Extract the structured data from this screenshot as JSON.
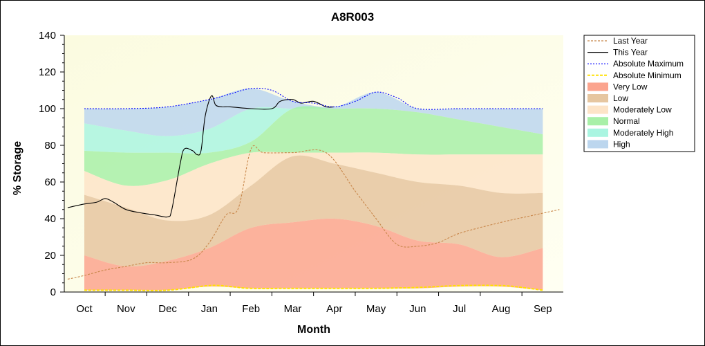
{
  "chart_data": {
    "type": "area",
    "title": "A8R003",
    "xlabel": "Month",
    "ylabel": "% Storage",
    "ylim": [
      0,
      140
    ],
    "yticks": [
      0,
      20,
      40,
      60,
      80,
      100,
      120,
      140
    ],
    "categories": [
      "Oct",
      "Nov",
      "Dec",
      "Jan",
      "Feb",
      "Mar",
      "Apr",
      "May",
      "Jun",
      "Jul",
      "Aug",
      "Sep"
    ],
    "legend_position": "right",
    "bands": [
      {
        "name": "High",
        "color": "#bcd6ee",
        "x": [
          0,
          1,
          2,
          3,
          4,
          5,
          6,
          7,
          8,
          9,
          10,
          11
        ],
        "upper": [
          100,
          100,
          101,
          105,
          111,
          104,
          101,
          109,
          100,
          100,
          100,
          100
        ],
        "lower": [
          92,
          88,
          85,
          89,
          100,
          100,
          100,
          100,
          98,
          94,
          90,
          86
        ]
      },
      {
        "name": "Moderately High",
        "color": "#aaf5e1",
        "x": [
          0,
          1,
          2,
          3,
          4,
          5,
          6,
          7,
          8,
          9,
          10,
          11
        ],
        "upper": [
          92,
          88,
          85,
          89,
          100,
          100,
          100,
          100,
          98,
          94,
          90,
          86
        ],
        "lower": [
          77,
          76,
          76,
          76,
          82,
          100,
          100,
          100,
          98,
          94,
          90,
          86
        ]
      },
      {
        "name": "Normal",
        "color": "#a8f0a8",
        "x": [
          0,
          1,
          2,
          3,
          4,
          5,
          6,
          7,
          8,
          9,
          10,
          11
        ],
        "upper": [
          77,
          76,
          76,
          76,
          82,
          100,
          100,
          100,
          98,
          94,
          90,
          86
        ],
        "lower": [
          66,
          58,
          61,
          70,
          76,
          76,
          76,
          76,
          75,
          75,
          75,
          75
        ]
      },
      {
        "name": "Moderately Low",
        "color": "#fde4c8",
        "x": [
          0,
          1,
          2,
          3,
          4,
          5,
          6,
          7,
          8,
          9,
          10,
          11
        ],
        "upper": [
          66,
          58,
          61,
          70,
          76,
          76,
          76,
          76,
          75,
          75,
          75,
          75
        ],
        "lower": [
          53,
          46,
          39,
          42,
          58,
          74,
          70,
          65,
          60,
          58,
          54,
          54
        ]
      },
      {
        "name": "Low",
        "color": "#e6c6a0",
        "x": [
          0,
          1,
          2,
          3,
          4,
          5,
          6,
          7,
          8,
          9,
          10,
          11
        ],
        "upper": [
          53,
          46,
          39,
          42,
          58,
          74,
          70,
          65,
          60,
          58,
          54,
          54
        ],
        "lower": [
          20,
          14,
          17,
          24,
          35,
          38,
          40,
          36,
          28,
          26,
          19,
          24
        ]
      },
      {
        "name": "Very Low",
        "color": "#fba48e",
        "x": [
          0,
          1,
          2,
          3,
          4,
          5,
          6,
          7,
          8,
          9,
          10,
          11
        ],
        "upper": [
          20,
          14,
          17,
          24,
          35,
          38,
          40,
          36,
          28,
          26,
          19,
          24
        ],
        "lower": [
          1,
          1,
          1,
          3,
          2,
          2,
          2,
          2,
          2,
          3,
          3,
          1
        ]
      }
    ],
    "series": [
      {
        "name": "Last Year",
        "color": "#c8864a",
        "dash": "3,2",
        "x": [
          -0.4,
          0,
          0.5,
          1,
          1.5,
          2,
          2.6,
          3,
          3.4,
          3.7,
          4.0,
          4.3,
          5,
          5.8,
          6.5,
          7,
          7.5,
          8,
          8.5,
          9,
          10,
          10.8,
          11.4
        ],
        "y": [
          7,
          9,
          12,
          14,
          16,
          16,
          18,
          27,
          42,
          46,
          78,
          76,
          76,
          76,
          55,
          40,
          26,
          25,
          27,
          32,
          38,
          42,
          45
        ]
      },
      {
        "name": "This Year",
        "color": "#000000",
        "dash": "",
        "x": [
          -0.4,
          0,
          0.3,
          0.5,
          0.7,
          1,
          1.4,
          1.7,
          2,
          2.1,
          2.3,
          2.4,
          2.6,
          2.7,
          2.8,
          2.9,
          3.05,
          3.15,
          3.3,
          3.5,
          4,
          4.5,
          4.7,
          5,
          5.2,
          5.5,
          5.8,
          6
        ],
        "y": [
          46,
          48,
          49,
          51,
          49,
          45,
          43,
          42,
          41,
          45,
          70,
          78,
          77,
          75,
          77,
          96,
          107,
          102,
          101,
          101,
          100,
          100,
          104,
          105,
          103,
          104,
          101,
          101
        ]
      },
      {
        "name": "Absolute Maximum",
        "color": "#0000ff",
        "dash": "2,2",
        "x": [
          0,
          1,
          2,
          3,
          3.5,
          4,
          4.5,
          5,
          5.5,
          6,
          6.5,
          7,
          7.5,
          8,
          9,
          10,
          11
        ],
        "y": [
          100,
          100,
          101,
          105,
          108,
          111,
          110,
          104,
          103,
          101,
          104,
          109,
          106,
          100,
          100,
          100,
          100
        ]
      },
      {
        "name": "Absolute Minimum",
        "color": "#ffe000",
        "dash": "4,2",
        "x": [
          0,
          1,
          2,
          3,
          3.5,
          4,
          5,
          6,
          7,
          8,
          9,
          10,
          10.5,
          11
        ],
        "y": [
          1,
          1,
          1,
          3.5,
          3,
          2,
          2,
          2,
          2,
          2.5,
          3.5,
          3.5,
          2.5,
          1
        ]
      }
    ],
    "legend": [
      "Last Year",
      "This Year",
      "Absolute Maximum",
      "Absolute Minimum",
      "Very Low",
      "Low",
      "Moderately Low",
      "Normal",
      "Moderately High",
      "High"
    ]
  }
}
